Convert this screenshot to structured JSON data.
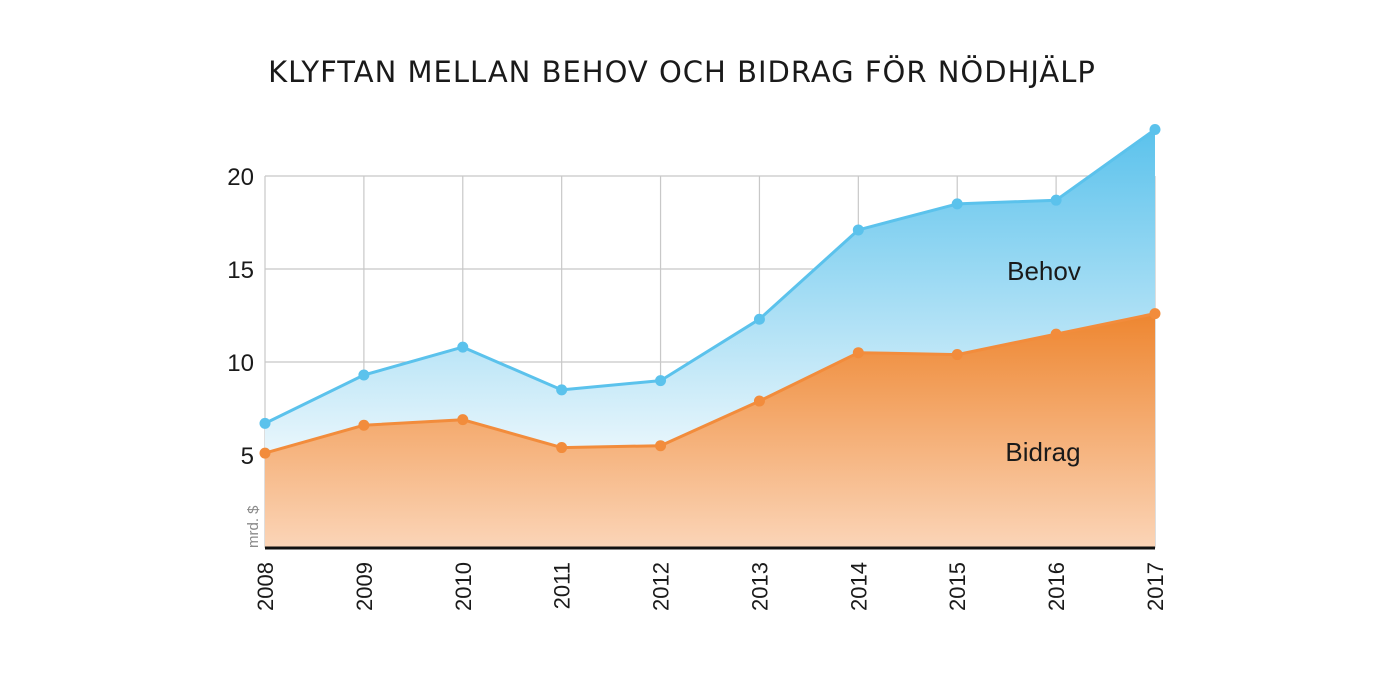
{
  "chart_data": {
    "type": "area",
    "title": "KLYFTAN MELLAN BEHOV OCH BIDRAG FÖR NÖDHJÄLP",
    "ylabel": "mrd. $",
    "xlabel": "",
    "categories": [
      "2008",
      "2009",
      "2010",
      "2011",
      "2012",
      "2013",
      "2014",
      "2015",
      "2016",
      "2017"
    ],
    "ylim": [
      0,
      20
    ],
    "yticks": [
      5,
      10,
      15,
      20
    ],
    "grid": true,
    "series": [
      {
        "name": "Behov",
        "color": "#5bc2ec",
        "values": [
          6.7,
          9.3,
          10.8,
          8.5,
          9.0,
          12.3,
          17.1,
          18.5,
          18.7,
          22.5
        ]
      },
      {
        "name": "Bidrag",
        "color": "#f28c3c",
        "values": [
          5.1,
          6.6,
          6.9,
          5.4,
          5.5,
          7.9,
          10.5,
          10.4,
          11.5,
          12.6
        ]
      }
    ]
  }
}
